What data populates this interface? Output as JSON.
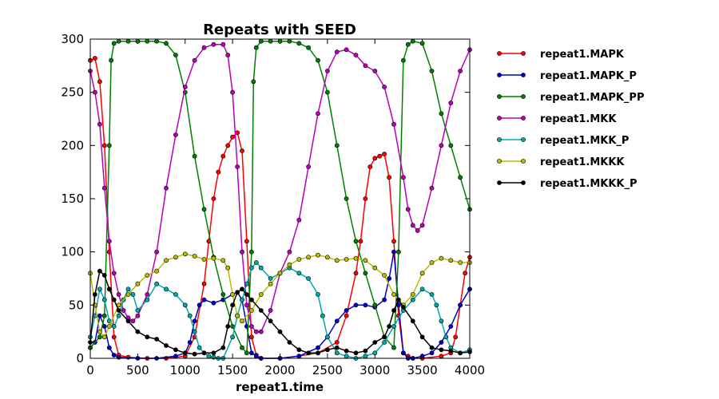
{
  "chart_data": {
    "type": "line",
    "title": "Repeats with SEED",
    "xlabel": "repeat1.time",
    "ylabel": "",
    "xlim": [
      0,
      4000
    ],
    "ylim": [
      0,
      300
    ],
    "xticks": [
      0,
      500,
      1000,
      1500,
      2000,
      2500,
      3000,
      3500,
      4000
    ],
    "yticks": [
      0,
      50,
      100,
      150,
      200,
      250,
      300
    ],
    "grid": false,
    "legend_position": "outside-right",
    "markers": "circle",
    "series": [
      {
        "name": "repeat1.MAPK",
        "color": "#ff0000",
        "x": [
          0,
          50,
          100,
          150,
          200,
          250,
          300,
          400,
          600,
          800,
          1000,
          1100,
          1200,
          1250,
          1300,
          1350,
          1400,
          1450,
          1500,
          1550,
          1600,
          1650,
          1700,
          1750,
          1800,
          2000,
          2200,
          2400,
          2600,
          2700,
          2800,
          2850,
          2900,
          2950,
          3000,
          3050,
          3100,
          3150,
          3200,
          3250,
          3300,
          3350,
          3400,
          3500,
          3700,
          3800,
          3850,
          3900,
          3950,
          4000
        ],
        "y": [
          280,
          282,
          260,
          200,
          100,
          20,
          3,
          1,
          0,
          0,
          2,
          20,
          70,
          110,
          150,
          175,
          190,
          200,
          208,
          212,
          195,
          110,
          20,
          3,
          0,
          0,
          2,
          5,
          15,
          40,
          80,
          110,
          150,
          180,
          188,
          190,
          192,
          170,
          110,
          40,
          5,
          2,
          0,
          0,
          2,
          5,
          20,
          50,
          80,
          95
        ]
      },
      {
        "name": "repeat1.MAPK_P",
        "color": "#0000cc",
        "x": [
          0,
          50,
          100,
          150,
          200,
          250,
          300,
          500,
          700,
          900,
          1000,
          1050,
          1100,
          1150,
          1200,
          1300,
          1400,
          1500,
          1550,
          1600,
          1650,
          1700,
          1750,
          1800,
          2000,
          2200,
          2400,
          2500,
          2600,
          2700,
          2800,
          2900,
          3000,
          3100,
          3150,
          3200,
          3250,
          3300,
          3350,
          3400,
          3500,
          3600,
          3700,
          3800,
          3900,
          4000
        ],
        "y": [
          10,
          15,
          40,
          30,
          10,
          3,
          1,
          0,
          0,
          2,
          5,
          15,
          35,
          50,
          55,
          52,
          55,
          60,
          62,
          55,
          30,
          5,
          2,
          0,
          0,
          2,
          10,
          20,
          35,
          45,
          50,
          50,
          48,
          55,
          75,
          100,
          50,
          5,
          0,
          0,
          2,
          5,
          15,
          30,
          50,
          65
        ]
      },
      {
        "name": "repeat1.MAPK_PP",
        "color": "#008000",
        "x": [
          0,
          100,
          150,
          200,
          220,
          250,
          300,
          400,
          500,
          600,
          700,
          800,
          900,
          1000,
          1100,
          1200,
          1300,
          1400,
          1500,
          1600,
          1650,
          1700,
          1720,
          1750,
          1800,
          1900,
          2000,
          2100,
          2200,
          2300,
          2400,
          2500,
          2600,
          2700,
          2800,
          2900,
          3000,
          3100,
          3200,
          3250,
          3300,
          3350,
          3400,
          3500,
          3600,
          3700,
          3800,
          3900,
          4000
        ],
        "y": [
          10,
          20,
          40,
          200,
          280,
          296,
          298,
          298,
          298,
          298,
          298,
          296,
          285,
          250,
          190,
          140,
          95,
          60,
          30,
          10,
          5,
          100,
          260,
          292,
          298,
          298,
          298,
          298,
          296,
          292,
          280,
          250,
          200,
          150,
          110,
          80,
          50,
          20,
          10,
          100,
          280,
          295,
          298,
          296,
          270,
          230,
          200,
          170,
          140
        ]
      },
      {
        "name": "repeat1.MKK",
        "color": "#bb00bb",
        "x": [
          0,
          50,
          100,
          150,
          200,
          250,
          300,
          350,
          400,
          450,
          500,
          600,
          700,
          800,
          900,
          1000,
          1100,
          1200,
          1300,
          1400,
          1450,
          1500,
          1550,
          1600,
          1650,
          1700,
          1750,
          1800,
          1900,
          2000,
          2100,
          2200,
          2300,
          2400,
          2500,
          2600,
          2700,
          2800,
          2900,
          3000,
          3100,
          3200,
          3300,
          3350,
          3400,
          3450,
          3500,
          3600,
          3700,
          3800,
          3900,
          4000
        ],
        "y": [
          270,
          250,
          220,
          160,
          110,
          80,
          60,
          45,
          38,
          35,
          40,
          60,
          100,
          160,
          210,
          255,
          280,
          292,
          295,
          295,
          285,
          250,
          180,
          100,
          50,
          30,
          25,
          25,
          45,
          80,
          100,
          130,
          180,
          230,
          270,
          288,
          290,
          285,
          275,
          270,
          255,
          220,
          170,
          140,
          125,
          120,
          125,
          160,
          200,
          240,
          270,
          290
        ]
      },
      {
        "name": "repeat1.MKK_P",
        "color": "#00aaaa",
        "x": [
          0,
          50,
          100,
          150,
          200,
          250,
          300,
          350,
          400,
          450,
          500,
          600,
          700,
          800,
          900,
          1000,
          1050,
          1100,
          1150,
          1200,
          1250,
          1300,
          1350,
          1400,
          1500,
          1550,
          1600,
          1650,
          1700,
          1750,
          1800,
          1900,
          2000,
          2100,
          2200,
          2300,
          2400,
          2450,
          2500,
          2600,
          2700,
          2800,
          2900,
          3000,
          3100,
          3200,
          3300,
          3400,
          3500,
          3600,
          3650,
          3700,
          3750,
          3800,
          3900,
          4000
        ],
        "y": [
          20,
          40,
          65,
          55,
          35,
          30,
          40,
          55,
          65,
          60,
          45,
          55,
          70,
          65,
          60,
          50,
          40,
          25,
          10,
          5,
          2,
          1,
          0,
          0,
          20,
          40,
          55,
          70,
          85,
          90,
          85,
          75,
          80,
          85,
          80,
          75,
          60,
          40,
          20,
          5,
          2,
          0,
          2,
          5,
          15,
          30,
          45,
          55,
          65,
          60,
          50,
          35,
          20,
          10,
          5,
          8
        ]
      },
      {
        "name": "repeat1.MKKK",
        "color": "#bbbb00",
        "x": [
          0,
          50,
          100,
          150,
          200,
          300,
          400,
          500,
          600,
          700,
          800,
          900,
          1000,
          1100,
          1200,
          1300,
          1400,
          1450,
          1500,
          1550,
          1600,
          1700,
          1800,
          1900,
          2000,
          2100,
          2200,
          2300,
          2400,
          2500,
          2600,
          2700,
          2800,
          2900,
          3000,
          3100,
          3200,
          3300,
          3400,
          3500,
          3600,
          3700,
          3800,
          3900,
          4000
        ],
        "y": [
          80,
          50,
          25,
          20,
          30,
          50,
          60,
          70,
          78,
          82,
          92,
          95,
          98,
          96,
          93,
          94,
          92,
          85,
          60,
          40,
          35,
          45,
          60,
          70,
          80,
          88,
          93,
          95,
          97,
          95,
          92,
          93,
          94,
          92,
          85,
          78,
          60,
          50,
          60,
          80,
          90,
          94,
          92,
          90,
          90
        ]
      },
      {
        "name": "repeat1.MKKK_P",
        "color": "#000000",
        "x": [
          0,
          50,
          100,
          150,
          200,
          250,
          300,
          400,
          500,
          600,
          700,
          800,
          900,
          1000,
          1100,
          1200,
          1300,
          1400,
          1450,
          1500,
          1550,
          1600,
          1650,
          1700,
          1800,
          1900,
          2000,
          2100,
          2200,
          2300,
          2400,
          2500,
          2600,
          2700,
          2800,
          2900,
          3000,
          3100,
          3150,
          3200,
          3250,
          3300,
          3400,
          3500,
          3600,
          3700,
          3800,
          3900,
          4000
        ],
        "y": [
          15,
          60,
          82,
          78,
          65,
          55,
          45,
          35,
          25,
          20,
          18,
          12,
          8,
          5,
          4,
          5,
          5,
          10,
          30,
          50,
          62,
          65,
          60,
          55,
          45,
          35,
          25,
          15,
          8,
          5,
          5,
          8,
          10,
          7,
          5,
          7,
          15,
          20,
          30,
          45,
          55,
          48,
          35,
          20,
          10,
          8,
          7,
          5,
          6
        ]
      }
    ]
  }
}
